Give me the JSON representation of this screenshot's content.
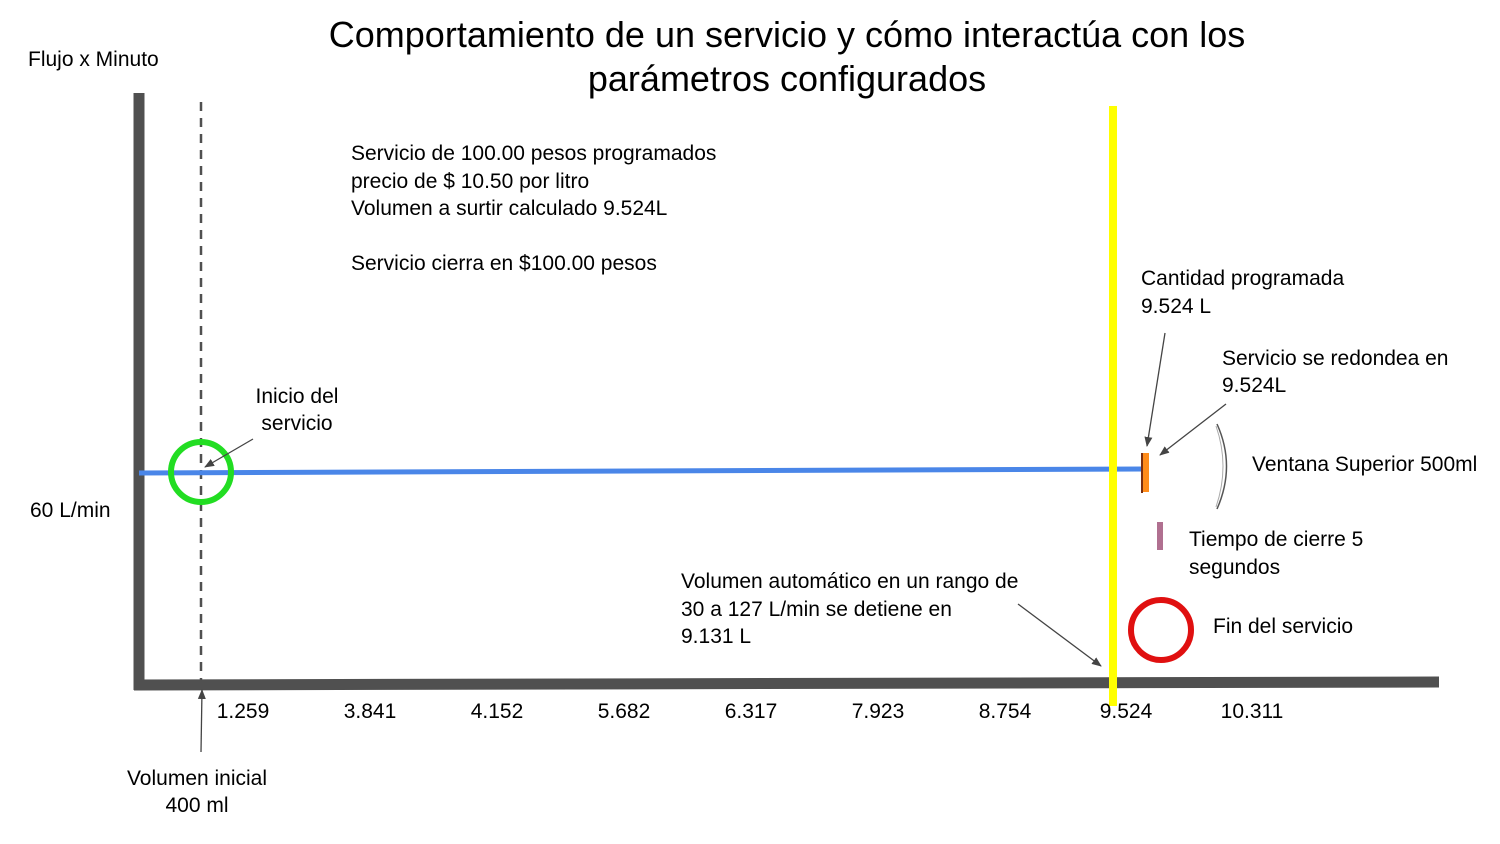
{
  "title": {
    "line1": "Comportamiento de un servicio y cómo interactúa con los",
    "line2": "parámetros configurados"
  },
  "y_axis_label": "Flujo x Minuto",
  "flow_value_label": "60 L/min",
  "x_ticks": [
    "1.259",
    "3.841",
    "4.152",
    "5.682",
    "6.317",
    "7.923",
    "8.754",
    "9.524",
    "10.311"
  ],
  "info_box": {
    "line1": "Servicio de 100.00 pesos programados",
    "line2": "precio de $ 10.50 por litro",
    "line3": "Volumen a surtir calculado 9.524L",
    "line4": "Servicio cierra en $100.00 pesos"
  },
  "annotations": {
    "start": {
      "line1": "Inicio del",
      "line2": "servicio"
    },
    "initial_volume": {
      "line1": "Volumen inicial",
      "line2": "400 ml"
    },
    "programmed": {
      "line1": "Cantidad programada",
      "line2": "9.524 L"
    },
    "rounded": {
      "line1": "Servicio se redondea en",
      "line2": "9.524L"
    },
    "upper_window": "Ventana Superior 500ml",
    "closing_time": {
      "line1": "Tiempo de cierre 5",
      "line2": "segundos"
    },
    "auto_volume": {
      "line1": "Volumen automático en un rango de",
      "line2": "30 a 127 L/min se detiene en",
      "line3": "9.131 L"
    },
    "end": "Fin del servicio"
  },
  "colors": {
    "axis": "#505050",
    "flow_line": "#4a86e8",
    "start_circle": "#22dd22",
    "end_circle": "#e01010",
    "stop_line": "#ffff00",
    "programmed_marker": "#ff8c1a",
    "closing_marker": "#b07090"
  }
}
